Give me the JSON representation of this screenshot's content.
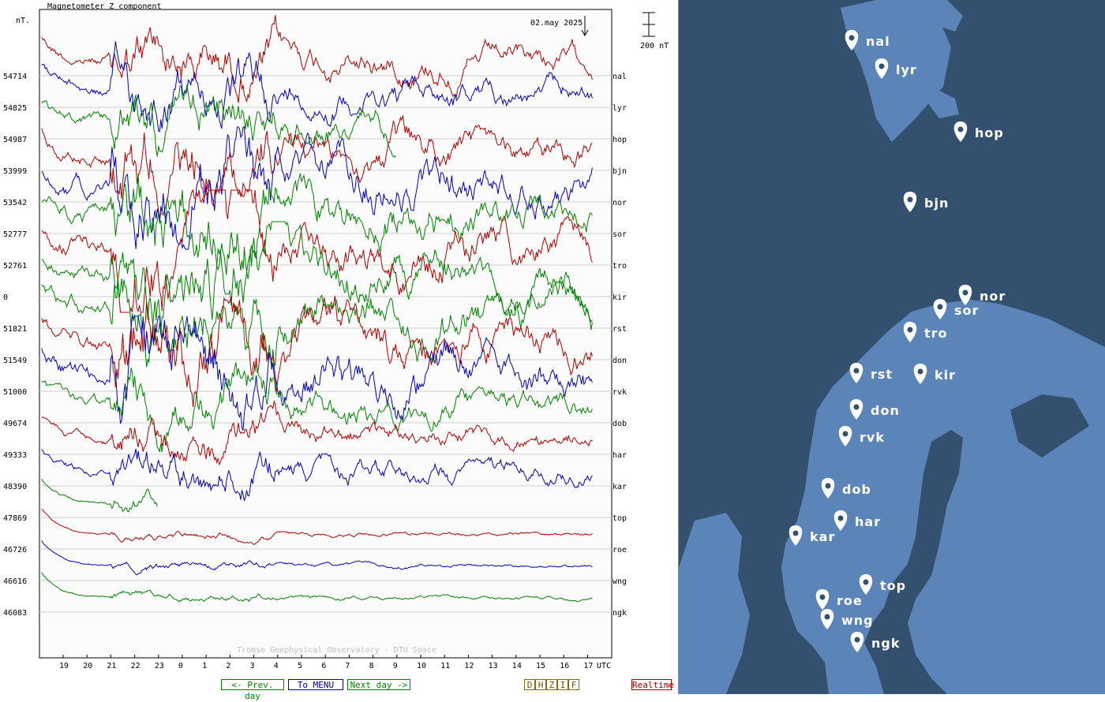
{
  "chart_data": {
    "type": "line",
    "title": "Magnetometer Z component",
    "ylabel": "nT.",
    "date": "02.may 2025",
    "scale_label": "200 nT",
    "footer": "Tromso Geophysical Observatory - DTU Space",
    "x_unit": "UTC",
    "x_ticks": [
      "19",
      "20",
      "21",
      "22",
      "23",
      "0",
      "1",
      "2",
      "3",
      "4",
      "5",
      "6",
      "7",
      "8",
      "9",
      "10",
      "11",
      "12",
      "13",
      "14",
      "15",
      "16",
      "17"
    ],
    "colors": {
      "red": "#b00000",
      "blue": "#0000c0",
      "green": "#008000"
    },
    "stations": [
      {
        "code": "nal",
        "baseline": "54714",
        "color": "red",
        "activity": 2,
        "end": 17.2
      },
      {
        "code": "lyr",
        "baseline": "54825",
        "color": "blue",
        "activity": 2,
        "end": 17.2
      },
      {
        "code": "hop",
        "baseline": "54987",
        "color": "green",
        "activity": 2,
        "end": 9.0
      },
      {
        "code": "bjn",
        "baseline": "53999",
        "color": "red",
        "activity": 2.5,
        "end": 17.2
      },
      {
        "code": "nor",
        "baseline": "53542",
        "color": "blue",
        "activity": 3,
        "end": 17.2
      },
      {
        "code": "sor",
        "baseline": "52777",
        "color": "green",
        "activity": 3,
        "end": 17.2
      },
      {
        "code": "tro",
        "baseline": "52761",
        "color": "red",
        "activity": 3,
        "end": 17.2
      },
      {
        "code": "kir",
        "baseline": "0",
        "color": "green",
        "activity": 3,
        "end": 17.2
      },
      {
        "code": "rst",
        "baseline": "51821",
        "color": "green",
        "activity": 3,
        "end": 17.2
      },
      {
        "code": "don",
        "baseline": "51549",
        "color": "red",
        "activity": 3,
        "end": 17.2
      },
      {
        "code": "rvk",
        "baseline": "51000",
        "color": "blue",
        "activity": 3,
        "end": 17.2
      },
      {
        "code": "dob",
        "baseline": "49674",
        "color": "green",
        "activity": 2,
        "end": 17.2
      },
      {
        "code": "har",
        "baseline": "49333",
        "color": "red",
        "activity": 1.5,
        "end": 17.2
      },
      {
        "code": "kar",
        "baseline": "48390",
        "color": "blue",
        "activity": 1.5,
        "end": 17.2
      },
      {
        "code": "top",
        "baseline": "47869",
        "color": "green",
        "activity": 0.6,
        "end": 23.0
      },
      {
        "code": "roe",
        "baseline": "46726",
        "color": "red",
        "activity": 0.3,
        "end": 17.2
      },
      {
        "code": "wng",
        "baseline": "46616",
        "color": "blue",
        "activity": 0.3,
        "end": 17.2
      },
      {
        "code": "ngk",
        "baseline": "46083",
        "color": "green",
        "activity": 0.3,
        "end": 17.2
      }
    ]
  },
  "nav": {
    "prev_day": "<- Prev. day",
    "menu": "To MENU",
    "next_day": "Next day ->",
    "components": [
      "D",
      "H",
      "Z",
      "I",
      "F"
    ],
    "realtime": "Realtime"
  },
  "map": {
    "pin_color": "#ffffff",
    "water_color": "#34506f",
    "land_color": "#5b84b8",
    "stations": [
      "nal",
      "lyr",
      "hop",
      "bjn",
      "nor",
      "sor",
      "tro",
      "rst",
      "kir",
      "don",
      "rvk",
      "dob",
      "har",
      "kar",
      "top",
      "roe",
      "wng",
      "ngk"
    ]
  }
}
